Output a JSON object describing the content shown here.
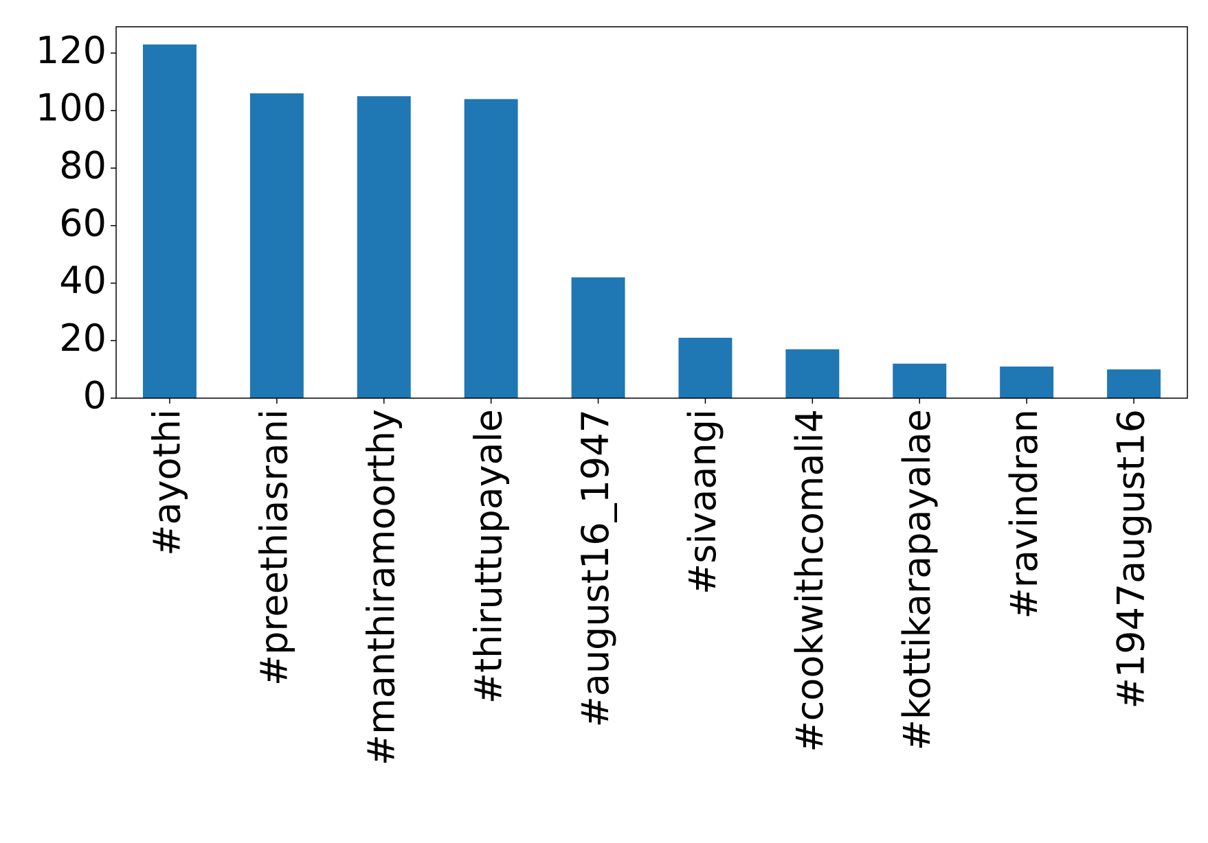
{
  "chart_data": {
    "type": "bar",
    "categories": [
      "#ayothi",
      "#preethiasrani",
      "#manthiramoorthy",
      "#thiruttupayale",
      "#august16_1947",
      "#sivaangi",
      "#cookwithcomali4",
      "#kottikarapayalae",
      "#ravindran",
      "#1947august16"
    ],
    "values": [
      123,
      106,
      105,
      104,
      42,
      21,
      17,
      12,
      11,
      10
    ],
    "color": "#1f77b4",
    "ylim": [
      0,
      129.15
    ],
    "yticks": [
      0,
      20,
      40,
      60,
      80,
      100,
      120
    ],
    "grid": false
  }
}
